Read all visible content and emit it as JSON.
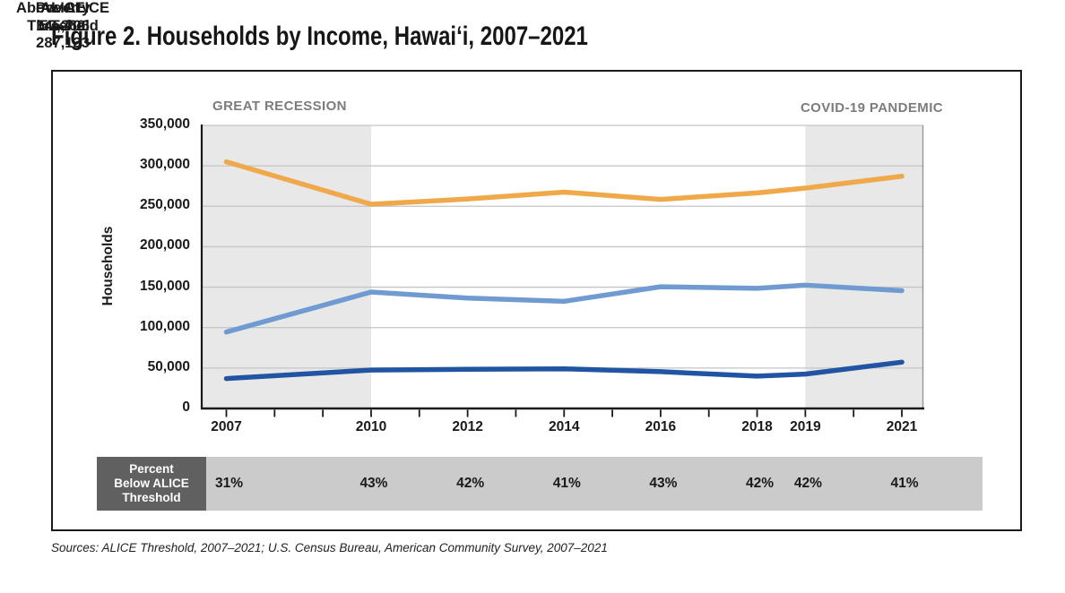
{
  "page": {
    "title": "Figure 2. Households by Income, Hawaiʻi, 2007–2021",
    "source_note": "Sources: ALICE Threshold, 2007–2021; U.S. Census Bureau, American Community Survey, 2007–2021"
  },
  "chart_data": {
    "type": "line",
    "title": "Figure 2. Households by Income, Hawaiʻi, 2007–2021",
    "xlabel": "",
    "ylabel": "Households",
    "ylim": [
      0,
      350000
    ],
    "xlim": [
      2007,
      2021
    ],
    "grid": true,
    "legend_position": "inline-right",
    "yticks": {
      "values": [
        0,
        50000,
        100000,
        150000,
        200000,
        250000,
        300000,
        350000
      ],
      "labels": [
        "0",
        "50,000",
        "100,000",
        "150,000",
        "200,000",
        "250,000",
        "300,000",
        "350,000"
      ]
    },
    "categories": [
      2007,
      2010,
      2012,
      2014,
      2016,
      2018,
      2019,
      2021
    ],
    "category_labels": [
      "2007",
      "2010",
      "2012",
      "2014",
      "2016",
      "2018",
      "2019",
      "2021"
    ],
    "series": [
      {
        "name": "Above ALICE Threshold",
        "end_label": "287,133",
        "color": "#EFA94A",
        "values": [
          305000,
          252500,
          259000,
          267500,
          258500,
          266500,
          272500,
          287133
        ]
      },
      {
        "name": "ALICE",
        "end_label": "145,706",
        "color": "#6F9BD1",
        "values": [
          94500,
          144000,
          136500,
          132500,
          150500,
          148500,
          152500,
          145706
        ]
      },
      {
        "name": "Poverty",
        "end_label": "57,262",
        "color": "#2155A4",
        "values": [
          37000,
          47500,
          48500,
          49000,
          45500,
          40000,
          42500,
          57262
        ]
      }
    ],
    "annotations": [
      {
        "label": "GREAT RECESSION",
        "band_years": [
          2007,
          2010
        ],
        "band_color": "#E8E8E9"
      },
      {
        "label": "COVID-19 PANDEMIC",
        "band_years": [
          2019,
          2021
        ],
        "band_color": "#E8E8E9"
      }
    ],
    "percent_row": {
      "header": "Percent\nBelow ALICE\nThreshold",
      "values": [
        "31%",
        "43%",
        "42%",
        "41%",
        "43%",
        "42%",
        "42%",
        "41%"
      ]
    }
  }
}
